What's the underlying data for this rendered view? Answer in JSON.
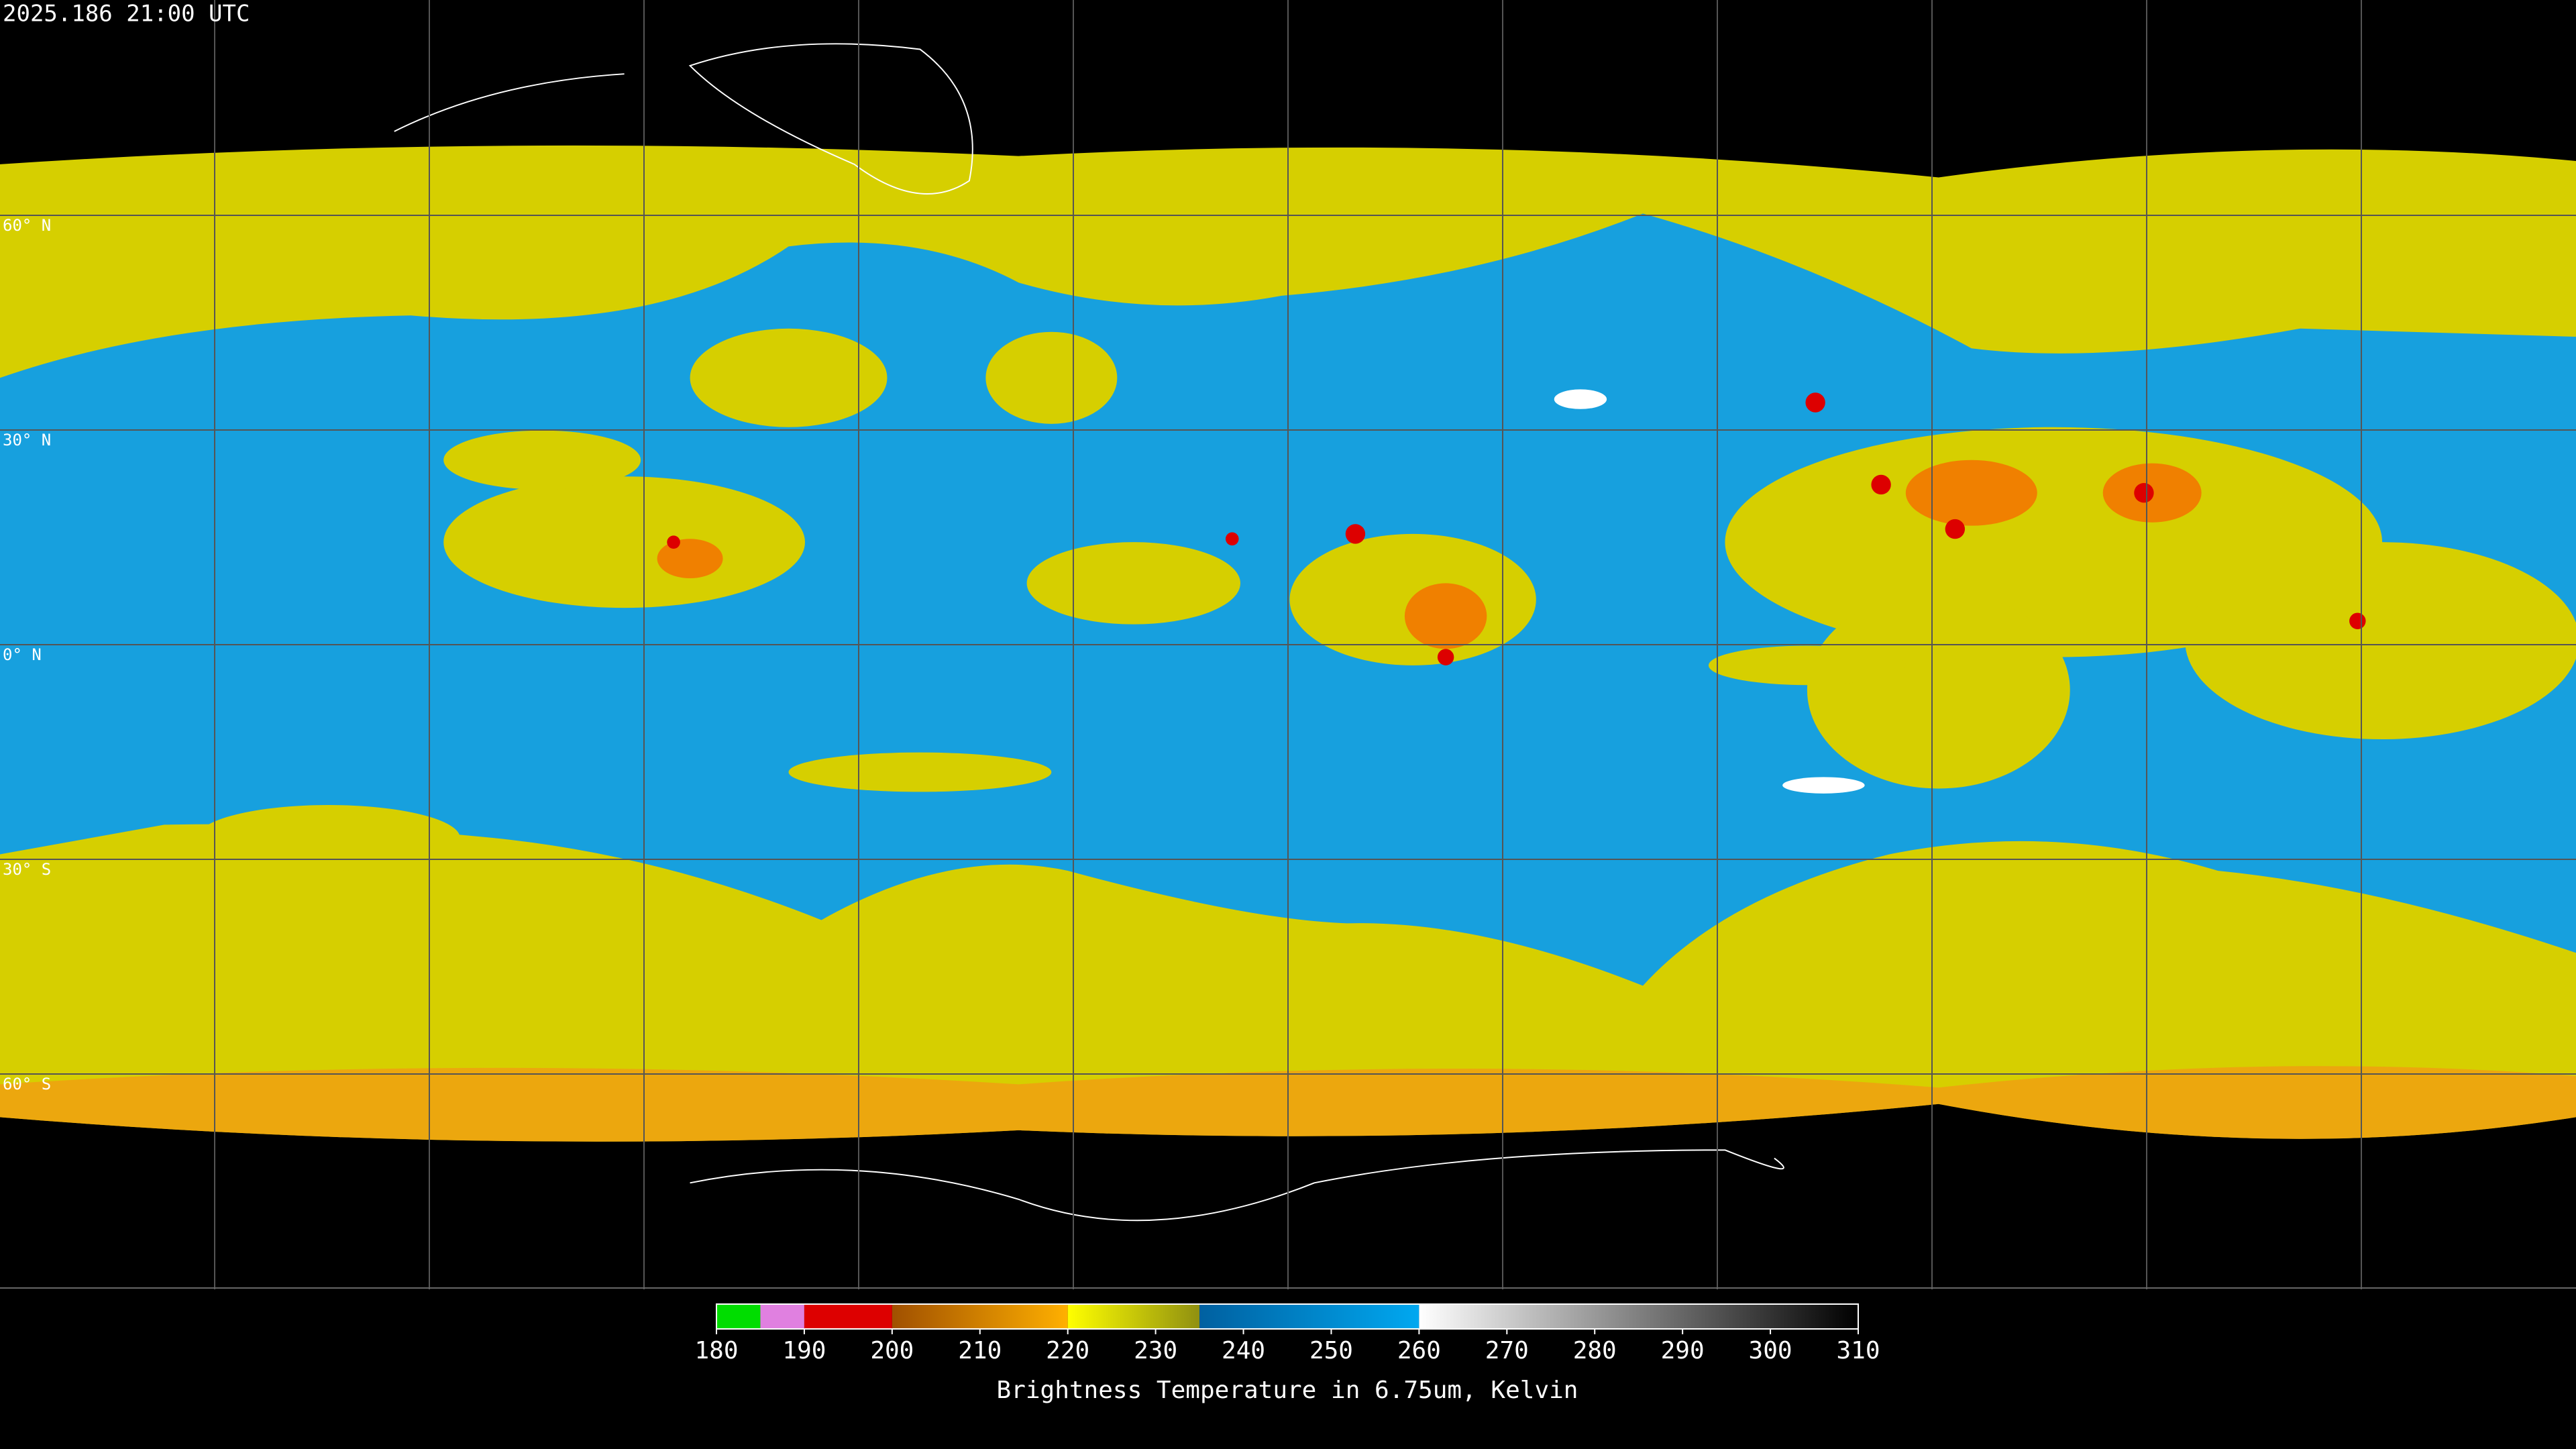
{
  "header": {
    "title": "2025.186 21:00 UTC"
  },
  "map": {
    "lat_lines": [
      {
        "value": 60,
        "label": "60° N"
      },
      {
        "value": 30,
        "label": "30° N"
      },
      {
        "value": 0,
        "label": "0° N"
      },
      {
        "value": -30,
        "label": "30° S"
      },
      {
        "value": -60,
        "label": "60° S"
      }
    ]
  },
  "colorbar": {
    "range": [
      180,
      310
    ],
    "ticks": [
      180,
      190,
      200,
      210,
      220,
      230,
      240,
      250,
      260,
      270,
      280,
      290,
      300,
      310
    ],
    "segments": [
      {
        "from": 180,
        "to": 185,
        "color_start": "#00dd00",
        "color_end": "#00dd00"
      },
      {
        "from": 185,
        "to": 190,
        "color_start": "#e080e0",
        "color_end": "#e080e0"
      },
      {
        "from": 190,
        "to": 200,
        "color_start": "#dd0000",
        "color_end": "#dd0000"
      },
      {
        "from": 200,
        "to": 220,
        "color_start": "#a05000",
        "color_end": "#ffb000"
      },
      {
        "from": 220,
        "to": 235,
        "color_start": "#ffff00",
        "color_end": "#909010"
      },
      {
        "from": 235,
        "to": 260,
        "color_start": "#0060a0",
        "color_end": "#00a8f0"
      },
      {
        "from": 260,
        "to": 310,
        "color_start": "#ffffff",
        "color_end": "#000000"
      }
    ],
    "label": "Brightness Temperature in 6.75um, Kelvin"
  }
}
